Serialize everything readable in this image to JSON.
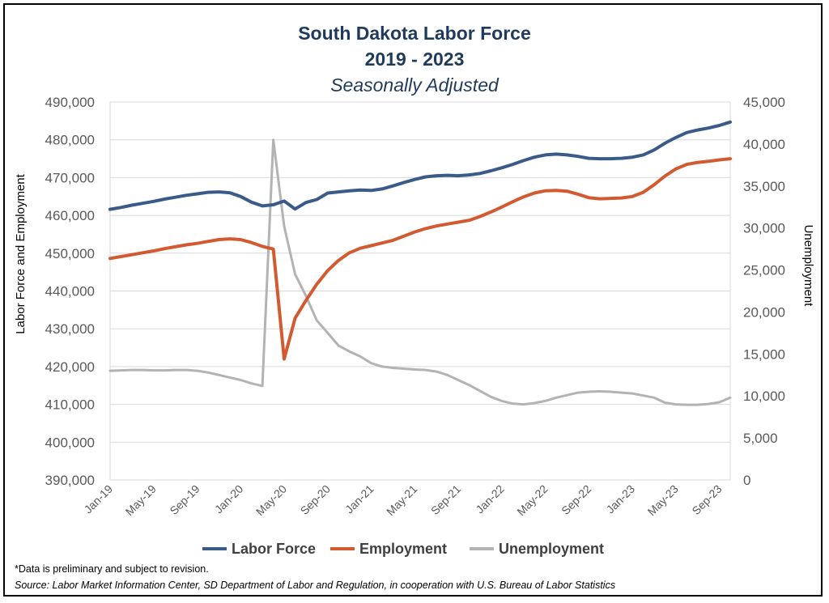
{
  "title": "South Dakota Labor Force",
  "subtitle_years": "2019 - 2023",
  "subtitle_adjustment": "Seasonally Adjusted",
  "note": "*Data is preliminary and subject to revision.",
  "source": "Source: Labor Market Information Center, SD Department of Labor and Regulation, in cooperation with U.S. Bureau of Labor Statistics",
  "chart_data": {
    "type": "line",
    "ylabel_left": "Labor  Force and Employment",
    "ylabel_right": "Unemployment",
    "ylim_left": [
      390000,
      490000
    ],
    "ylim_right": [
      0,
      45000
    ],
    "yticks_left": [
      "390,000",
      "400,000",
      "410,000",
      "420,000",
      "430,000",
      "440,000",
      "450,000",
      "460,000",
      "470,000",
      "480,000",
      "490,000"
    ],
    "yticks_right": [
      "0",
      "5,000",
      "10,000",
      "15,000",
      "20,000",
      "25,000",
      "30,000",
      "35,000",
      "40,000",
      "45,000"
    ],
    "xtick_labels": [
      "Jan-19",
      "May-19",
      "Sep-19",
      "Jan-20",
      "May-20",
      "Sep-20",
      "Jan-21",
      "May-21",
      "Sep-21",
      "Jan-22",
      "May-22",
      "Sep-22",
      "Jan-23",
      "May-23",
      "Sep-23"
    ],
    "x_start": "Jan-19",
    "grid": true,
    "legend_position": "bottom",
    "series": [
      {
        "name": "Labor Force",
        "axis": "left",
        "color": "#3a5a8a",
        "values": [
          461600,
          462100,
          462700,
          463200,
          463700,
          464300,
          464800,
          465300,
          465700,
          466100,
          466200,
          466000,
          465000,
          463500,
          462500,
          462800,
          463800,
          461700,
          463400,
          464200,
          465900,
          466200,
          466500,
          466700,
          466600,
          467000,
          467800,
          468700,
          469500,
          470200,
          470500,
          470600,
          470500,
          470700,
          471100,
          471800,
          472600,
          473500,
          474500,
          475400,
          476000,
          476200,
          476000,
          475600,
          475100,
          475000,
          475000,
          475100,
          475400,
          476000,
          477300,
          479100,
          480600,
          481900,
          482600,
          483100,
          483800,
          484700
        ]
      },
      {
        "name": "Employment",
        "axis": "left",
        "color": "#d35a30",
        "values": [
          448600,
          449100,
          449600,
          450100,
          450600,
          451200,
          451700,
          452200,
          452600,
          453100,
          453600,
          453800,
          453600,
          452800,
          451800,
          451100,
          422000,
          432800,
          437500,
          441800,
          445400,
          448100,
          450100,
          451300,
          452000,
          452700,
          453400,
          454500,
          455600,
          456500,
          457200,
          457700,
          458200,
          458700,
          459700,
          460900,
          462200,
          463600,
          464900,
          465900,
          466500,
          466600,
          466400,
          465600,
          464700,
          464400,
          464500,
          464600,
          465000,
          466100,
          468100,
          470400,
          472300,
          473500,
          474000,
          474300,
          474700,
          475000
        ]
      },
      {
        "name": "Unemployment",
        "axis": "right",
        "color": "#b3b3b3",
        "values": [
          13000,
          13050,
          13100,
          13100,
          13050,
          13050,
          13100,
          13100,
          13000,
          12800,
          12500,
          12200,
          11900,
          11500,
          11200,
          40500,
          30200,
          24500,
          21900,
          19000,
          17500,
          16000,
          15300,
          14700,
          13900,
          13500,
          13350,
          13250,
          13150,
          13100,
          12900,
          12500,
          11900,
          11300,
          10600,
          9900,
          9400,
          9100,
          9000,
          9150,
          9400,
          9800,
          10100,
          10400,
          10500,
          10550,
          10500,
          10400,
          10300,
          10050,
          9800,
          9200,
          9000,
          8950,
          8950,
          9050,
          9250,
          9800
        ]
      }
    ]
  }
}
